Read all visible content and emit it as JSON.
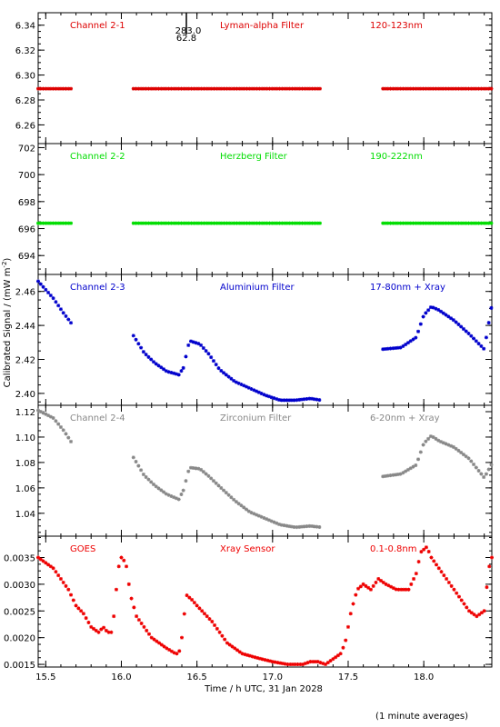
{
  "chart_data": {
    "type": "scatter",
    "xlabel": "Time / h UTC, 31 Jan 2028",
    "ylabel": "Calibrated Signal / (mW m",
    "ylabel_sup": "-2",
    "ylabel_end": ")",
    "xlim": [
      15.45,
      18.45
    ],
    "xticks": [
      "15.5",
      "16.0",
      "16.5",
      "17.0",
      "17.5",
      "18.0"
    ],
    "footnote": "(1 minute averages)",
    "marker_annotation": {
      "x": 16.43,
      "label_top": "283.0",
      "label_bottom": "62.8"
    },
    "panels": [
      {
        "channel": "Channel 2-1",
        "filter": "Lyman-alpha Filter",
        "band": "120-123nm",
        "color": "#dd0000",
        "ylim": [
          6.245,
          6.35
        ],
        "yticks": [
          "6.26",
          "6.28",
          "6.30",
          "6.32",
          "6.34"
        ],
        "segments": [
          [
            15.45,
            15.68
          ],
          [
            16.08,
            17.32
          ],
          [
            17.73,
            18.45
          ]
        ],
        "points": [
          [
            15.45,
            6.289
          ],
          [
            17.32,
            6.289
          ]
        ]
      },
      {
        "channel": "Channel 2-2",
        "filter": "Herzberg Filter",
        "band": "190-222nm",
        "color": "#00dd00",
        "ylim": [
          692.6,
          702.3
        ],
        "yticks": [
          "694",
          "696",
          "698",
          "700",
          "702"
        ],
        "segments": [
          [
            15.45,
            15.68
          ],
          [
            16.08,
            17.32
          ],
          [
            17.73,
            18.45
          ]
        ],
        "points": [
          [
            15.45,
            696.4
          ],
          [
            17.32,
            696.4
          ]
        ]
      },
      {
        "channel": "Channel 2-3",
        "filter": "Aluminium Filter",
        "band": "17-80nm + Xray",
        "color": "#0000cc",
        "ylim": [
          2.393,
          2.47
        ],
        "yticks": [
          "2.40",
          "2.42",
          "2.44",
          "2.46"
        ],
        "segments": [
          [
            15.45,
            15.68
          ],
          [
            16.08,
            16.41
          ],
          [
            16.41,
            17.32
          ],
          [
            17.73,
            18.45
          ]
        ],
        "points": [
          [
            15.45,
            2.466
          ],
          [
            15.55,
            2.456
          ],
          [
            15.62,
            2.447
          ],
          [
            15.68,
            2.44
          ],
          [
            16.08,
            2.434
          ],
          [
            16.15,
            2.424
          ],
          [
            16.22,
            2.418
          ],
          [
            16.3,
            2.413
          ],
          [
            16.38,
            2.411
          ],
          [
            16.41,
            2.415
          ],
          [
            16.45,
            2.431
          ],
          [
            16.52,
            2.429
          ],
          [
            16.58,
            2.423
          ],
          [
            16.65,
            2.414
          ],
          [
            16.75,
            2.407
          ],
          [
            16.85,
            2.403
          ],
          [
            16.95,
            2.399
          ],
          [
            17.05,
            2.396
          ],
          [
            17.15,
            2.396
          ],
          [
            17.25,
            2.397
          ],
          [
            17.32,
            2.396
          ],
          [
            17.73,
            2.426
          ],
          [
            17.85,
            2.427
          ],
          [
            17.95,
            2.433
          ],
          [
            18.0,
            2.446
          ],
          [
            18.05,
            2.451
          ],
          [
            18.1,
            2.449
          ],
          [
            18.2,
            2.443
          ],
          [
            18.3,
            2.435
          ],
          [
            18.4,
            2.426
          ],
          [
            18.45,
            2.452
          ]
        ]
      },
      {
        "channel": "Channel 2-4",
        "filter": "Zirconium Filter",
        "band": "6-20nm + Xray",
        "color": "#888888",
        "ylim": [
          1.022,
          1.125
        ],
        "yticks": [
          "1.04",
          "1.06",
          "1.08",
          "1.10",
          "1.12"
        ],
        "segments": [
          [
            15.45,
            15.68
          ],
          [
            16.08,
            16.41
          ],
          [
            16.41,
            17.32
          ],
          [
            17.73,
            18.45
          ]
        ],
        "points": [
          [
            15.45,
            1.121
          ],
          [
            15.55,
            1.115
          ],
          [
            15.62,
            1.105
          ],
          [
            15.68,
            1.094
          ],
          [
            16.08,
            1.084
          ],
          [
            16.15,
            1.07
          ],
          [
            16.22,
            1.062
          ],
          [
            16.3,
            1.055
          ],
          [
            16.38,
            1.051
          ],
          [
            16.41,
            1.058
          ],
          [
            16.45,
            1.076
          ],
          [
            16.52,
            1.075
          ],
          [
            16.58,
            1.069
          ],
          [
            16.65,
            1.061
          ],
          [
            16.75,
            1.05
          ],
          [
            16.85,
            1.041
          ],
          [
            16.95,
            1.036
          ],
          [
            17.05,
            1.031
          ],
          [
            17.15,
            1.029
          ],
          [
            17.25,
            1.03
          ],
          [
            17.32,
            1.029
          ],
          [
            17.73,
            1.069
          ],
          [
            17.85,
            1.071
          ],
          [
            17.95,
            1.078
          ],
          [
            18.0,
            1.095
          ],
          [
            18.05,
            1.101
          ],
          [
            18.1,
            1.097
          ],
          [
            18.2,
            1.092
          ],
          [
            18.3,
            1.083
          ],
          [
            18.4,
            1.068
          ],
          [
            18.45,
            1.079
          ]
        ]
      },
      {
        "channel": "GOES",
        "filter": "Xray Sensor",
        "band": "0.1-0.8nm",
        "color": "#ee0000",
        "ylim": [
          0.00145,
          0.0039
        ],
        "yticks": [
          "0.0015",
          "0.0020",
          "0.0025",
          "0.0030",
          "0.0035"
        ],
        "segments": [
          [
            15.45,
            18.45
          ]
        ],
        "points": [
          [
            15.45,
            0.0035
          ],
          [
            15.55,
            0.0033
          ],
          [
            15.6,
            0.0031
          ],
          [
            15.65,
            0.0029
          ],
          [
            15.7,
            0.0026
          ],
          [
            15.75,
            0.00245
          ],
          [
            15.8,
            0.0022
          ],
          [
            15.85,
            0.0021
          ],
          [
            15.88,
            0.0022
          ],
          [
            15.91,
            0.0021
          ],
          [
            15.94,
            0.0021
          ],
          [
            15.98,
            0.0033
          ],
          [
            16.0,
            0.0035
          ],
          [
            16.03,
            0.0034
          ],
          [
            16.06,
            0.0028
          ],
          [
            16.1,
            0.0024
          ],
          [
            16.15,
            0.0022
          ],
          [
            16.2,
            0.002
          ],
          [
            16.25,
            0.0019
          ],
          [
            16.3,
            0.0018
          ],
          [
            16.36,
            0.0017
          ],
          [
            16.38,
            0.0017
          ],
          [
            16.4,
            0.002
          ],
          [
            16.43,
            0.0028
          ],
          [
            16.47,
            0.0027
          ],
          [
            16.5,
            0.0026
          ],
          [
            16.6,
            0.0023
          ],
          [
            16.7,
            0.0019
          ],
          [
            16.8,
            0.0017
          ],
          [
            16.9,
            0.00162
          ],
          [
            17.0,
            0.00155
          ],
          [
            17.1,
            0.0015
          ],
          [
            17.2,
            0.0015
          ],
          [
            17.25,
            0.00155
          ],
          [
            17.3,
            0.00155
          ],
          [
            17.35,
            0.0015
          ],
          [
            17.4,
            0.0016
          ],
          [
            17.45,
            0.0017
          ],
          [
            17.48,
            0.0019
          ],
          [
            17.52,
            0.0025
          ],
          [
            17.56,
            0.0029
          ],
          [
            17.6,
            0.003
          ],
          [
            17.65,
            0.0029
          ],
          [
            17.7,
            0.0031
          ],
          [
            17.75,
            0.003
          ],
          [
            17.82,
            0.0029
          ],
          [
            17.9,
            0.0029
          ],
          [
            17.95,
            0.0032
          ],
          [
            17.98,
            0.0036
          ],
          [
            18.02,
            0.0037
          ],
          [
            18.05,
            0.0035
          ],
          [
            18.1,
            0.0033
          ],
          [
            18.2,
            0.0029
          ],
          [
            18.3,
            0.0025
          ],
          [
            18.35,
            0.0024
          ],
          [
            18.4,
            0.0025
          ],
          [
            18.43,
            0.0033
          ],
          [
            18.45,
            0.0035
          ]
        ]
      }
    ]
  }
}
